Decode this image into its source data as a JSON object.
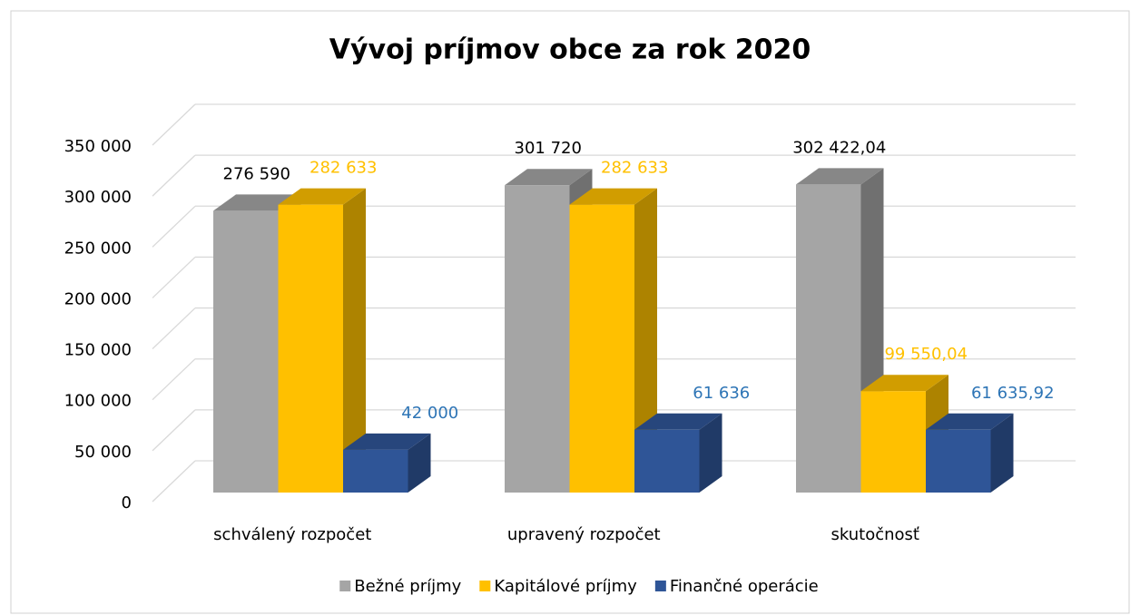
{
  "chart_data": {
    "type": "bar3d",
    "title": "Vývoj príjmov obce za rok 2020",
    "categories": [
      "schválený rozpočet",
      "upravený rozpočet",
      "skutočnosť"
    ],
    "series": [
      {
        "name": "Bežné príjmy",
        "color": "#a5a5a5",
        "label_color": "#000000",
        "values": [
          276590,
          301720,
          302422.04
        ],
        "value_labels": [
          "276 590",
          "301 720",
          "302 422,04"
        ]
      },
      {
        "name": "Kapitálové príjmy",
        "color": "#ffc000",
        "label_color": "#ffc000",
        "values": [
          282633,
          282633,
          99550.04
        ],
        "value_labels": [
          "282 633",
          "282 633",
          "99 550,04"
        ]
      },
      {
        "name": "Finančné operácie",
        "color": "#2f5597",
        "label_color": "#2e75b6",
        "values": [
          42000,
          61636,
          61635.92
        ],
        "value_labels": [
          "42 000",
          "61 636",
          "61 635,92"
        ]
      }
    ],
    "ylim": [
      0,
      350000
    ],
    "yticks": [
      0,
      {
        "value": 50000,
        "label": "50 000"
      },
      {
        "value": 100000,
        "label": "100 000"
      },
      {
        "value": 150000,
        "label": "150 000"
      },
      {
        "value": 200000,
        "label": "200 000"
      },
      {
        "value": 250000,
        "label": "250 000"
      },
      {
        "value": 300000,
        "label": "300 000"
      },
      {
        "value": 350000,
        "label": "350 000"
      }
    ],
    "grid": true,
    "legend": "bottom"
  }
}
